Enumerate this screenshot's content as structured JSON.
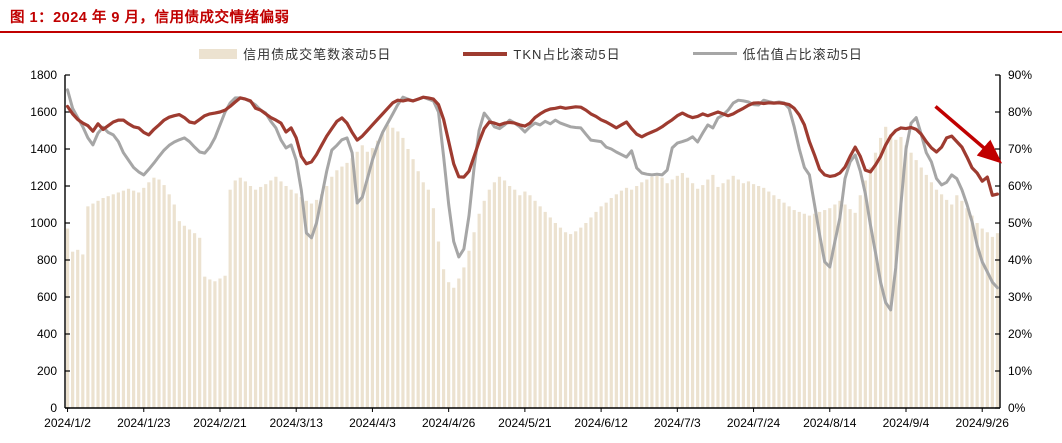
{
  "figure": {
    "title": "图 1：2024 年 9 月，信用债成交情绪偏弱",
    "colors": {
      "title": "#c00000",
      "rule": "#c00000",
      "bar": "#ece2d0",
      "tkn_line": "#9e3b30",
      "undervalue_line": "#a6a6a6",
      "axis": "#000000",
      "arrow": "#c00000"
    },
    "legend": [
      {
        "label": "信用债成交笔数滚动5日",
        "type": "bar"
      },
      {
        "label": "TKN占比滚动5日",
        "type": "line"
      },
      {
        "label": "低估值占比滚动5日",
        "type": "line"
      }
    ]
  },
  "chart_data": {
    "type": "combo bar+line (bar on left axis, lines on right axis)",
    "title": "图 1：2024 年 9 月，信用债成交情绪偏弱",
    "left_axis": {
      "min": 0,
      "max": 1800,
      "step": 200,
      "tick_labels": [
        "0",
        "200",
        "400",
        "600",
        "800",
        "1000",
        "1200",
        "1400",
        "1600",
        "1800"
      ]
    },
    "right_axis": {
      "min": 0,
      "max": 90,
      "step": 10,
      "tick_labels": [
        "0%",
        "10%",
        "20%",
        "30%",
        "40%",
        "50%",
        "60%",
        "70%",
        "80%",
        "90%"
      ]
    },
    "x_tick_labels": [
      "2024/1/2",
      "2024/1/23",
      "2024/2/21",
      "2024/3/13",
      "2024/4/3",
      "2024/4/26",
      "2024/5/21",
      "2024/6/12",
      "2024/7/3",
      "2024/7/24",
      "2024/8/14",
      "2024/9/4",
      "2024/9/26"
    ],
    "x_tick_indices": [
      0,
      15,
      30,
      45,
      60,
      75,
      90,
      105,
      120,
      135,
      150,
      165,
      180
    ],
    "n_points": 184,
    "grid": false,
    "legend_position": "top",
    "series": [
      {
        "name": "信用债成交笔数滚动5日",
        "type": "bar",
        "axis": "left",
        "values": [
          970,
          845,
          855,
          830,
          1090,
          1105,
          1120,
          1135,
          1145,
          1155,
          1165,
          1175,
          1185,
          1175,
          1165,
          1190,
          1220,
          1245,
          1235,
          1205,
          1155,
          1100,
          1010,
          985,
          965,
          945,
          920,
          710,
          695,
          685,
          700,
          715,
          1180,
          1230,
          1245,
          1225,
          1200,
          1180,
          1195,
          1210,
          1230,
          1250,
          1225,
          1200,
          1180,
          1160,
          1140,
          1120,
          1105,
          1125,
          1155,
          1200,
          1250,
          1285,
          1305,
          1325,
          1350,
          1385,
          1420,
          1385,
          1405,
          1445,
          1485,
          1530,
          1515,
          1495,
          1460,
          1400,
          1345,
          1280,
          1220,
          1180,
          1080,
          900,
          750,
          680,
          650,
          700,
          760,
          850,
          950,
          1050,
          1120,
          1180,
          1220,
          1250,
          1230,
          1200,
          1180,
          1150,
          1170,
          1150,
          1120,
          1090,
          1060,
          1030,
          1000,
          975,
          950,
          940,
          955,
          975,
          1000,
          1030,
          1060,
          1090,
          1110,
          1135,
          1155,
          1175,
          1190,
          1180,
          1200,
          1220,
          1235,
          1250,
          1270,
          1245,
          1215,
          1235,
          1255,
          1270,
          1245,
          1215,
          1185,
          1205,
          1235,
          1260,
          1195,
          1215,
          1235,
          1255,
          1235,
          1215,
          1225,
          1210,
          1200,
          1190,
          1170,
          1150,
          1130,
          1110,
          1090,
          1070,
          1060,
          1050,
          1040,
          1050,
          1060,
          1070,
          1080,
          1100,
          1120,
          1100,
          1075,
          1055,
          1150,
          1230,
          1300,
          1380,
          1460,
          1520,
          1480,
          1450,
          1465,
          1420,
          1380,
          1340,
          1300,
          1260,
          1220,
          1180,
          1155,
          1125,
          1100,
          1150,
          1120,
          1080,
          1040,
          1000,
          970,
          950,
          925,
          945
        ]
      },
      {
        "name": "TKN占比滚动5日",
        "type": "line",
        "axis": "right",
        "values": [
          81.5,
          79.5,
          78,
          77,
          76.3,
          74.8,
          76.8,
          75.3,
          76.3,
          77.3,
          77.8,
          77.8,
          76.8,
          76,
          75.7,
          74.5,
          73.8,
          75.3,
          76.5,
          77.8,
          78.6,
          79,
          79.3,
          78.5,
          77.3,
          77,
          78,
          79,
          79.5,
          79.7,
          80,
          80.5,
          81.5,
          82.7,
          83.8,
          83.5,
          83,
          81,
          80.5,
          79.5,
          78.5,
          77.8,
          77,
          74.6,
          75.7,
          73,
          68,
          66,
          66.5,
          68.5,
          71,
          73.5,
          75.5,
          77.5,
          78.4,
          77,
          74.5,
          72.4,
          73.5,
          75,
          76.5,
          78,
          79.5,
          81,
          82.5,
          83.2,
          83,
          83.3,
          83,
          83.5,
          84,
          83.8,
          83.5,
          82,
          78,
          72,
          66,
          62.5,
          62.4,
          64,
          68,
          72,
          75.5,
          77.3,
          77,
          76.5,
          77,
          77.2,
          77,
          76.5,
          76.2,
          77,
          78.5,
          79.5,
          80.3,
          80.8,
          81,
          81.3,
          81,
          81.2,
          81.4,
          81.3,
          80.5,
          79.5,
          78.8,
          77.9,
          77.3,
          76.5,
          75.7,
          76.5,
          77.3,
          75.5,
          74,
          73.3,
          74,
          74.6,
          75.2,
          76,
          77,
          77.9,
          79,
          79.7,
          79,
          78.5,
          78.8,
          79.5,
          79,
          79.5,
          80,
          79.5,
          79,
          79.5,
          80.3,
          81,
          81.8,
          82.4,
          82.5,
          82.3,
          82.5,
          82.4,
          82.5,
          82.3,
          82,
          81,
          79.2,
          76.5,
          72,
          68.4,
          64.5,
          63,
          62.6,
          62.8,
          63.5,
          65.1,
          68,
          70.5,
          68,
          64.3,
          63.8,
          65.7,
          68,
          71.1,
          73.5,
          75,
          75.7,
          75.5,
          75.8,
          75.3,
          74,
          72,
          70.3,
          69.2,
          70.5,
          73,
          73.5,
          72,
          70.5,
          67.8,
          64.9,
          63.5,
          61.3,
          62.4,
          57.5,
          57.8
        ]
      },
      {
        "name": "低估值占比滚动5日",
        "type": "line",
        "axis": "right",
        "values": [
          86,
          81,
          78.5,
          76,
          73,
          71.1,
          74.3,
          75.9,
          74.5,
          73.8,
          72,
          69,
          67,
          65,
          63.8,
          63,
          64.5,
          66.2,
          68,
          69.7,
          71,
          71.9,
          72.5,
          73,
          72,
          70.5,
          69.2,
          68.9,
          70.5,
          73,
          76.5,
          80,
          82.4,
          83.8,
          83.8,
          83.5,
          82.8,
          81.9,
          80.5,
          79.7,
          77.5,
          75.7,
          72.4,
          70.3,
          71.1,
          67,
          58.9,
          47.3,
          46,
          50,
          57,
          64,
          69.7,
          71,
          72.5,
          73,
          69,
          55.4,
          57,
          62,
          67,
          71,
          74.5,
          77,
          79.5,
          82,
          84,
          83.5,
          83,
          83.5,
          84,
          83.5,
          83,
          80,
          68,
          55,
          45,
          40.8,
          43,
          52,
          65,
          75,
          79.7,
          78,
          76,
          75.5,
          76.5,
          77.8,
          77,
          76,
          74.6,
          76,
          77,
          76.5,
          77.5,
          76.8,
          77.8,
          77,
          76.5,
          76,
          75.8,
          75.7,
          74,
          72.4,
          72.2,
          72,
          70.5,
          70,
          69.2,
          68.5,
          67.8,
          69.5,
          64.9,
          63.5,
          63.2,
          63,
          63.2,
          63,
          64.3,
          70.3,
          71.6,
          72,
          72.5,
          73.3,
          71.9,
          74.3,
          76.5,
          75.7,
          78.4,
          79.2,
          80.5,
          82.4,
          83.2,
          83,
          82.7,
          82,
          81.9,
          83.2,
          82.8,
          82.5,
          82.7,
          82.5,
          81,
          76,
          70,
          65,
          63,
          55,
          46.8,
          39.5,
          38.1,
          45,
          51.4,
          62,
          66.5,
          68.4,
          64,
          58,
          49.5,
          42,
          34,
          28.5,
          26.5,
          38,
          55,
          70,
          77,
          78.5,
          74,
          69,
          66.5,
          62,
          60.3,
          61,
          63,
          62,
          59,
          55,
          50.3,
          44,
          39.5,
          36.8,
          34,
          32.5
        ]
      }
    ],
    "annotation_arrow": {
      "from_x_frac": 0.931,
      "from_pct": 81.5,
      "to_x_frac": 0.998,
      "to_pct": 67
    }
  }
}
